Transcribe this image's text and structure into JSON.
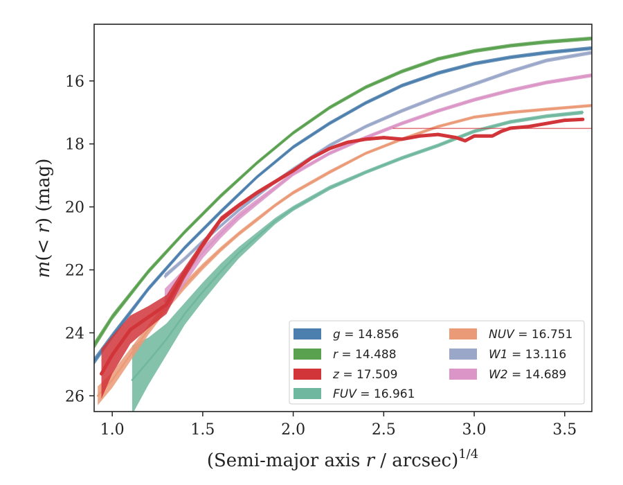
{
  "chart_data": {
    "type": "line",
    "xlabel": "(Semi-major axis r / arcsec)^1/4",
    "ylabel": "m(< r) (mag)",
    "xlim": [
      0.9,
      3.65
    ],
    "ylim": [
      26.5,
      14.2
    ],
    "y_inverted": true,
    "x_ticks": [
      1.0,
      1.5,
      2.0,
      2.5,
      3.0,
      3.5
    ],
    "y_ticks": [
      16,
      18,
      20,
      22,
      24,
      26
    ],
    "x_tick_labels": [
      "1.0",
      "1.5",
      "2.0",
      "2.5",
      "3.0",
      "3.5"
    ],
    "y_tick_labels": [
      "16",
      "18",
      "20",
      "22",
      "24",
      "26"
    ],
    "grid": false,
    "legend": {
      "location": "lower-right",
      "columns": 2
    },
    "series": [
      {
        "name": "g = 14.856",
        "var": "g",
        "value": "14.856",
        "color": "#4c7fad",
        "x": [
          0.9,
          1.0,
          1.2,
          1.4,
          1.6,
          1.8,
          2.0,
          2.2,
          2.4,
          2.6,
          2.8,
          3.0,
          3.2,
          3.4,
          3.65
        ],
        "y": [
          24.9,
          24.1,
          22.6,
          21.3,
          20.15,
          19.05,
          18.1,
          17.35,
          16.7,
          16.15,
          15.75,
          15.45,
          15.25,
          15.1,
          14.96
        ],
        "band": [
          0.12,
          0.1,
          0.08,
          0.07,
          0.07,
          0.06,
          0.06,
          0.06,
          0.06,
          0.06,
          0.06,
          0.06,
          0.06,
          0.06,
          0.06
        ],
        "asymptote": 14.856
      },
      {
        "name": "r = 14.488",
        "var": "r",
        "value": "14.488",
        "color": "#59a14f",
        "x": [
          0.9,
          1.0,
          1.2,
          1.4,
          1.6,
          1.8,
          2.0,
          2.2,
          2.4,
          2.6,
          2.8,
          3.0,
          3.2,
          3.4,
          3.65
        ],
        "y": [
          24.4,
          23.5,
          22.05,
          20.8,
          19.65,
          18.6,
          17.65,
          16.85,
          16.2,
          15.7,
          15.3,
          15.05,
          14.88,
          14.76,
          14.65
        ],
        "band": [
          0.12,
          0.1,
          0.08,
          0.07,
          0.07,
          0.06,
          0.06,
          0.06,
          0.06,
          0.06,
          0.06,
          0.06,
          0.06,
          0.06,
          0.06
        ],
        "asymptote": 14.488
      },
      {
        "name": "z = 17.509",
        "var": "z",
        "value": "17.509",
        "color": "#d1353a",
        "x": [
          0.94,
          1.0,
          1.1,
          1.2,
          1.3,
          1.4,
          1.5,
          1.6,
          1.7,
          1.8,
          1.9,
          2.0,
          2.1,
          2.2,
          2.3,
          2.4,
          2.5,
          2.6,
          2.7,
          2.8,
          2.9,
          2.95,
          3.0,
          3.1,
          3.15,
          3.2,
          3.3,
          3.4,
          3.5,
          3.6
        ],
        "y": [
          25.3,
          24.7,
          23.9,
          23.5,
          23.1,
          22.1,
          21.2,
          20.4,
          19.95,
          19.55,
          19.2,
          18.85,
          18.45,
          18.15,
          17.95,
          17.85,
          17.8,
          17.85,
          17.75,
          17.7,
          17.8,
          17.9,
          17.75,
          17.75,
          17.6,
          17.5,
          17.45,
          17.35,
          17.25,
          17.22
        ],
        "band": [
          0.8,
          0.6,
          0.45,
          0.35,
          0.3,
          0.18,
          0.12,
          0.1,
          0.08,
          0.07,
          0.07,
          0.06,
          0.06,
          0.05,
          0.05,
          0.05,
          0.05,
          0.05,
          0.05,
          0.05,
          0.05,
          0.05,
          0.05,
          0.05,
          0.05,
          0.05,
          0.05,
          0.05,
          0.05,
          0.05
        ],
        "asymptote": 17.509
      },
      {
        "name": "FUV = 16.961",
        "var": "FUV",
        "value": "16.961",
        "color": "#6fb79e",
        "x": [
          1.11,
          1.2,
          1.3,
          1.4,
          1.5,
          1.6,
          1.7,
          1.8,
          1.9,
          2.0,
          2.2,
          2.4,
          2.6,
          2.8,
          3.0,
          3.2,
          3.4,
          3.6
        ],
        "y": [
          25.5,
          24.9,
          24.2,
          23.4,
          22.7,
          22.05,
          21.45,
          20.95,
          20.45,
          20.05,
          19.4,
          18.9,
          18.45,
          18.05,
          17.6,
          17.3,
          17.12,
          17.0
        ],
        "band": [
          1.1,
          0.75,
          0.5,
          0.35,
          0.3,
          0.25,
          0.18,
          0.14,
          0.1,
          0.08,
          0.07,
          0.06,
          0.06,
          0.06,
          0.06,
          0.06,
          0.06,
          0.06
        ],
        "asymptote": 16.961
      },
      {
        "name": "NUV = 16.751",
        "var": "NUV",
        "value": "16.751",
        "color": "#eb9a77",
        "x": [
          0.92,
          1.0,
          1.1,
          1.2,
          1.3,
          1.4,
          1.5,
          1.6,
          1.7,
          1.8,
          1.9,
          2.0,
          2.2,
          2.4,
          2.6,
          2.8,
          3.0,
          3.2,
          3.4,
          3.65
        ],
        "y": [
          26.0,
          25.5,
          24.7,
          23.9,
          23.15,
          22.5,
          21.9,
          21.35,
          20.85,
          20.4,
          19.95,
          19.55,
          18.9,
          18.3,
          17.85,
          17.45,
          17.15,
          17.0,
          16.9,
          16.78
        ],
        "band": [
          0.3,
          0.25,
          0.2,
          0.16,
          0.14,
          0.12,
          0.1,
          0.08,
          0.07,
          0.07,
          0.06,
          0.06,
          0.06,
          0.05,
          0.05,
          0.05,
          0.05,
          0.05,
          0.05,
          0.05
        ],
        "asymptote": 16.751
      },
      {
        "name": "W1 = 13.116",
        "var": "W1",
        "value": "13.116",
        "color": "#9aa7c9",
        "x": [
          1.29,
          1.4,
          1.5,
          1.6,
          1.7,
          1.8,
          1.9,
          2.0,
          2.2,
          2.4,
          2.6,
          2.8,
          3.0,
          3.2,
          3.4,
          3.65
        ],
        "y": [
          22.2,
          21.65,
          21.1,
          20.6,
          20.1,
          19.65,
          19.2,
          18.8,
          18.05,
          17.45,
          16.95,
          16.5,
          16.1,
          15.7,
          15.35,
          15.1
        ],
        "band": [
          0.08,
          0.07,
          0.07,
          0.06,
          0.06,
          0.06,
          0.06,
          0.06,
          0.06,
          0.06,
          0.06,
          0.06,
          0.06,
          0.06,
          0.06,
          0.06
        ],
        "asymptote": 13.116
      },
      {
        "name": "W2 = 14.689",
        "var": "W2",
        "value": "14.689",
        "color": "#db95c6",
        "x": [
          1.29,
          1.4,
          1.5,
          1.6,
          1.7,
          1.8,
          1.9,
          2.0,
          2.2,
          2.4,
          2.6,
          2.8,
          3.0,
          3.2,
          3.4,
          3.65
        ],
        "y": [
          23.0,
          22.2,
          21.45,
          20.85,
          20.3,
          19.85,
          19.4,
          18.95,
          18.3,
          17.8,
          17.35,
          16.95,
          16.6,
          16.3,
          16.05,
          15.82
        ],
        "band": [
          0.4,
          0.25,
          0.18,
          0.14,
          0.12,
          0.1,
          0.08,
          0.07,
          0.06,
          0.06,
          0.06,
          0.06,
          0.06,
          0.06,
          0.06,
          0.06
        ],
        "asymptote": 14.689
      }
    ]
  }
}
